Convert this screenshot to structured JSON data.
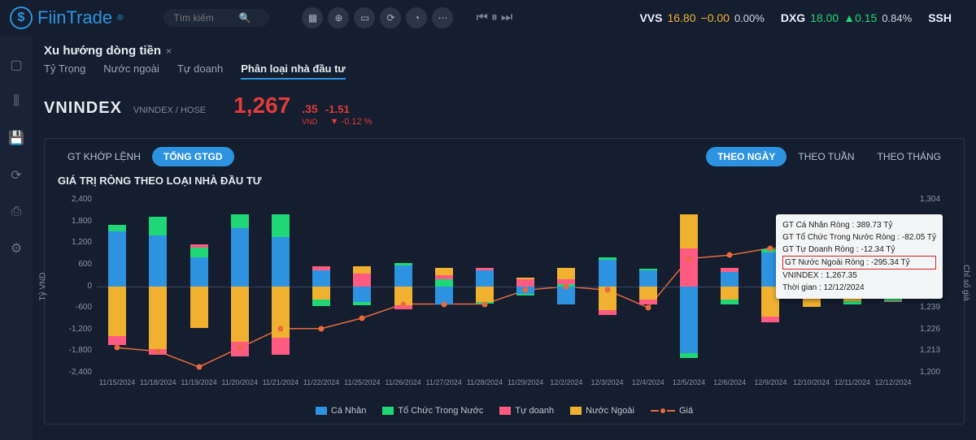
{
  "brand": {
    "name": "FiinTrade",
    "reg_mark": "®"
  },
  "search": {
    "placeholder": "Tìm kiếm"
  },
  "top_icons": [
    "grid",
    "search2",
    "calendar",
    "refresh",
    "clock",
    "more"
  ],
  "tickers": [
    {
      "sym": "VVS",
      "price": "16.80",
      "delta": "−0.00",
      "pct": "0.00%",
      "colorClass": "yellow"
    },
    {
      "sym": "DXG",
      "price": "18.00",
      "delta": "▲0.15",
      "pct": "0.84%",
      "colorClass": "green"
    },
    {
      "sym": "SSH",
      "price": "",
      "delta": "",
      "pct": "",
      "colorClass": "green"
    }
  ],
  "panel": {
    "title": "Xu hướng dòng tiền",
    "tabs": [
      "Tỷ Trọng",
      "Nước ngoài",
      "Tự doanh",
      "Phân loại nhà đầu tư"
    ],
    "active_tab_index": 3
  },
  "index": {
    "name": "VNINDEX",
    "sub": "VNINDEX / HOSE",
    "value_int": "1,267",
    "value_dec": ".35",
    "unit": "VND",
    "change": "-1.51",
    "change_pct": "-0.12 %"
  },
  "sub_tabs_left": [
    {
      "label": "GT KHỚP LỆNH",
      "active": false
    },
    {
      "label": "TỔNG GTGD",
      "active": true
    }
  ],
  "sub_tabs_right": [
    {
      "label": "THEO NGÀY",
      "active": true
    },
    {
      "label": "THEO TUẦN",
      "active": false
    },
    {
      "label": "THEO THÁNG",
      "active": false
    }
  ],
  "chart": {
    "title": "GIÁ TRỊ RÒNG THEO LOẠI NHÀ ĐẦU TƯ",
    "y_left_label": "Tỷ VND",
    "y_right_label": "Chỉ số giá",
    "background_color": "#141e2e",
    "grid_color": "#223045",
    "y_left_ticks": [
      "2,400",
      "1,800",
      "1,200",
      "600",
      "0",
      "-600",
      "-1,200",
      "-1,800",
      "-2,400"
    ],
    "y_right_ticks": [
      "1,304",
      "1,291",
      "1,278",
      "1,265",
      "1,252",
      "1,239",
      "1,226",
      "1,213",
      "1,200"
    ],
    "y_left_min": -2400,
    "y_left_max": 2400,
    "y_right_min": 1200,
    "y_right_max": 1304,
    "categories": [
      "11/15/2024",
      "11/18/2024",
      "11/19/2024",
      "11/20/2024",
      "11/21/2024",
      "11/22/2024",
      "11/25/2024",
      "11/26/2024",
      "11/27/2024",
      "11/28/2024",
      "11/29/2024",
      "12/2/2024",
      "12/3/2024",
      "12/4/2024",
      "12/5/2024",
      "12/6/2024",
      "12/9/2024",
      "12/10/2024",
      "12/11/2024",
      "12/12/2024"
    ],
    "series_colors": {
      "canhan": "#2d92e0",
      "tochuc": "#1fd774",
      "tudoanh": "#ff5b82",
      "nuocngoai": "#f0b030",
      "gia": "#e86a3e"
    },
    "series_names": {
      "canhan": "Cá Nhân",
      "tochuc": "Tổ Chức Trong Nước",
      "tudoanh": "Tự doanh",
      "nuocngoai": "Nước Ngoài",
      "gia": "Giá"
    },
    "bars": [
      {
        "p": {
          "canhan": 1450,
          "tochuc": 180
        },
        "n": {
          "nuocngoai": -1300,
          "tudoanh": -250
        }
      },
      {
        "p": {
          "canhan": 1350,
          "tochuc": 500
        },
        "n": {
          "nuocngoai": -1650,
          "tudoanh": -150
        }
      },
      {
        "p": {
          "canhan": 780,
          "tochuc": 250,
          "tudoanh": 90
        },
        "n": {
          "nuocngoai": -1100
        }
      },
      {
        "p": {
          "canhan": 1550,
          "tochuc": 350
        },
        "n": {
          "nuocngoai": -1450,
          "tudoanh": -400
        }
      },
      {
        "p": {
          "canhan": 1300,
          "tochuc": 600
        },
        "n": {
          "nuocngoai": -1350,
          "tudoanh": -450
        }
      },
      {
        "p": {
          "canhan": 420,
          "tudoanh": 120
        },
        "n": {
          "nuocngoai": -350,
          "tochuc": -170
        }
      },
      {
        "p": {
          "nuocngoai": 180,
          "tudoanh": 350
        },
        "n": {
          "canhan": -400,
          "tochuc": -100
        }
      },
      {
        "p": {
          "canhan": 550,
          "tochuc": 80
        },
        "n": {
          "nuocngoai": -500,
          "tudoanh": -100
        }
      },
      {
        "p": {
          "nuocngoai": 200,
          "tochuc": 200,
          "tudoanh": 100
        },
        "n": {
          "canhan": -480
        }
      },
      {
        "p": {
          "canhan": 430,
          "tudoanh": 70
        },
        "n": {
          "nuocngoai": -400,
          "tochuc": -60
        }
      },
      {
        "p": {
          "nuocngoai": 30,
          "tudoanh": 200
        },
        "n": {
          "canhan": -200,
          "tochuc": -40
        }
      },
      {
        "p": {
          "nuocngoai": 300,
          "tudoanh": 140,
          "tochuc": 60
        },
        "n": {
          "canhan": -480
        }
      },
      {
        "p": {
          "canhan": 700,
          "tochuc": 70
        },
        "n": {
          "nuocngoai": -620,
          "tudoanh": -120
        }
      },
      {
        "p": {
          "canhan": 420,
          "tochuc": 60
        },
        "n": {
          "nuocngoai": -350,
          "tudoanh": -120
        }
      },
      {
        "p": {
          "nuocngoai": 900,
          "tudoanh": 1000
        },
        "n": {
          "canhan": -1750,
          "tochuc": -130
        }
      },
      {
        "p": {
          "canhan": 380,
          "tudoanh": 120
        },
        "n": {
          "nuocngoai": -350,
          "tochuc": -130
        }
      },
      {
        "p": {
          "canhan": 900,
          "tochuc": 80
        },
        "n": {
          "nuocngoai": -800,
          "tudoanh": -150
        }
      },
      {
        "p": {
          "canhan": 200,
          "tudoanh": 300,
          "tochuc": 60
        },
        "n": {
          "nuocngoai": -530
        }
      },
      {
        "p": {
          "canhan": 420,
          "tudoanh": 70
        },
        "n": {
          "nuocngoai": -380,
          "tochuc": -90
        }
      },
      {
        "p": {
          "canhan": 390
        },
        "n": {
          "nuocngoai": -295,
          "tochuc": -82,
          "tudoanh": -12
        }
      }
    ],
    "line_values": [
      1217,
      1215,
      1206,
      1217,
      1228,
      1228,
      1234,
      1242,
      1242,
      1242,
      1250,
      1252,
      1250,
      1240,
      1268,
      1270,
      1274,
      1273,
      1269,
      1267
    ],
    "hover_index": 19
  },
  "tooltip": {
    "rows": [
      {
        "text": "GT Cá Nhân Ròng  : 389.73 Tỷ"
      },
      {
        "text": "GT Tổ Chức Trong Nước Ròng : -82.05 Tỷ"
      },
      {
        "text": "GT Tự Doanh Ròng : -12.34 Tỷ"
      },
      {
        "text": "GT Nước Ngoài Ròng : -295.34 Tỷ",
        "highlight": true
      },
      {
        "text": "VNINDEX : 1,267.35"
      },
      {
        "text": "Thời gian : 12/12/2024"
      }
    ]
  },
  "side_rail_icons": [
    "window",
    "columns",
    "save",
    "refresh",
    "print",
    "gear"
  ]
}
